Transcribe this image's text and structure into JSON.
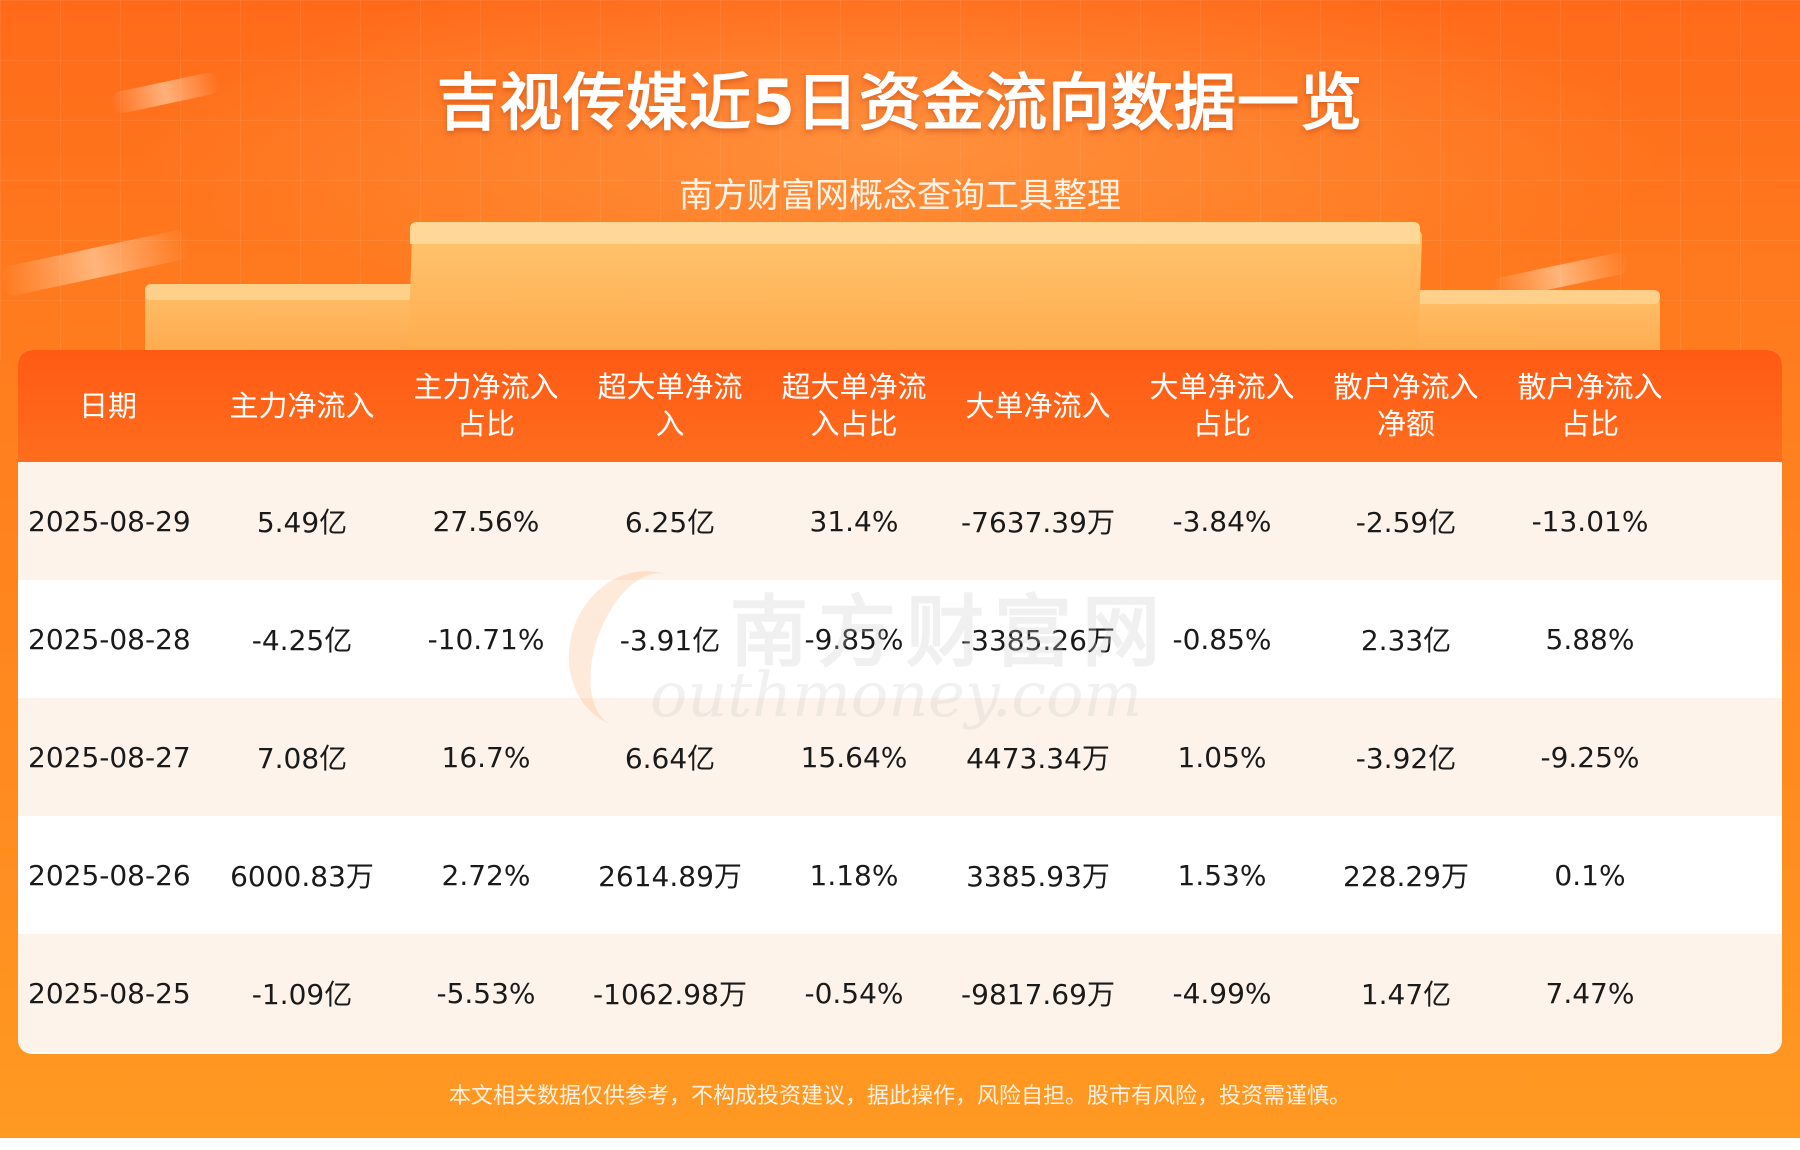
{
  "header": {
    "title": "吉视传媒近5日资金流向数据一览",
    "subtitle": "南方财富网概念查询工具整理"
  },
  "table": {
    "columns": [
      "日期",
      "主力净流入",
      "主力净流入\n占比",
      "超大单净流\n入",
      "超大单净流\n入占比",
      "大单净流入",
      "大单净流入\n占比",
      "散户净流入\n净额",
      "散户净流入\n占比"
    ],
    "rows": [
      [
        "2025-08-29",
        "5.49亿",
        "27.56%",
        "6.25亿",
        "31.4%",
        "-7637.39万",
        "-3.84%",
        "-2.59亿",
        "-13.01%"
      ],
      [
        "2025-08-28",
        "-4.25亿",
        "-10.71%",
        "-3.91亿",
        "-9.85%",
        "-3385.26万",
        "-0.85%",
        "2.33亿",
        "5.88%"
      ],
      [
        "2025-08-27",
        "7.08亿",
        "16.7%",
        "6.64亿",
        "15.64%",
        "4473.34万",
        "1.05%",
        "-3.92亿",
        "-9.25%"
      ],
      [
        "2025-08-26",
        "6000.83万",
        "2.72%",
        "2614.89万",
        "1.18%",
        "3385.93万",
        "1.53%",
        "228.29万",
        "0.1%"
      ],
      [
        "2025-08-25",
        "-1.09亿",
        "-5.53%",
        "-1062.98万",
        "-0.54%",
        "-9817.69万",
        "-4.99%",
        "1.47亿",
        "7.47%"
      ]
    ]
  },
  "watermark": {
    "cn": "南方财富网",
    "en": "outhmoney.com"
  },
  "footer": {
    "disclaimer": "本文相关数据仅供参考，不构成投资建议，据此操作，风险自担。股市有风险，投资需谨慎。"
  },
  "colors": {
    "header_bg": "#ff6a1a",
    "table_head": "#ff5a14",
    "row_alt": "#fdf3ea"
  }
}
